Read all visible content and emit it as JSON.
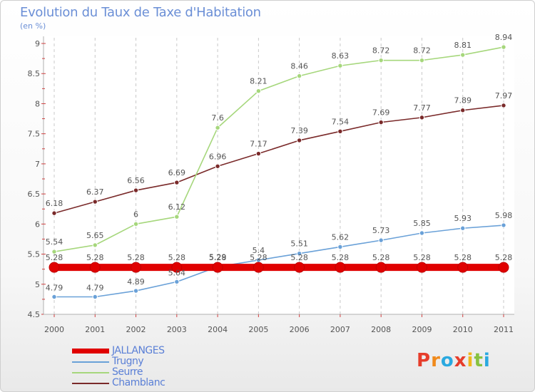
{
  "header": {
    "title": "Evolution du Taux de Taxe d'Habitation",
    "subtitle": "(en %)"
  },
  "brand": {
    "name": "Proxiti",
    "colors": [
      "#e63d2b",
      "#f08a1c",
      "#2aa9e0",
      "#e63d2b",
      "#f0b81c",
      "#88c240",
      "#2aa9e0"
    ]
  },
  "chart_data": {
    "type": "line",
    "x": [
      "2000",
      "2001",
      "2002",
      "2003",
      "2004",
      "2005",
      "2006",
      "2007",
      "2008",
      "2009",
      "2010",
      "2011"
    ],
    "ylim": [
      4.5,
      9
    ],
    "yticks": [
      "4.5",
      "5",
      "5.5",
      "6",
      "6.5",
      "7",
      "7.5",
      "8",
      "8.5",
      "9"
    ],
    "grid": true,
    "legend_position": "bottom-left",
    "series": [
      {
        "name": "JALLANGES",
        "color": "#e00000",
        "values": [
          5.28,
          5.28,
          5.28,
          5.28,
          5.28,
          5.28,
          5.28,
          5.28,
          5.28,
          5.28,
          5.28,
          5.28
        ],
        "labels": [
          "5.28",
          "5.28",
          "5.28",
          "5.28",
          "5.28",
          "5.28",
          "5.28",
          "5.28",
          "5.28",
          "5.28",
          "5.28",
          "5.28"
        ]
      },
      {
        "name": "Trugny",
        "color": "#6aa1d8",
        "values": [
          4.79,
          4.79,
          4.89,
          5.04,
          5.29,
          5.4,
          5.51,
          5.62,
          5.73,
          5.85,
          5.93,
          5.98
        ],
        "labels": [
          "4.79",
          "4.79",
          "4.89",
          "5.04",
          "5.29",
          "5.4",
          "5.51",
          "5.62",
          "5.73",
          "5.85",
          "5.93",
          "5.98"
        ]
      },
      {
        "name": "Seurre",
        "color": "#a6d77c",
        "values": [
          5.54,
          5.65,
          6,
          6.12,
          7.6,
          8.21,
          8.46,
          8.63,
          8.72,
          8.72,
          8.81,
          8.94
        ],
        "labels": [
          "5.54",
          "5.65",
          "6",
          "6.12",
          "7.6",
          "8.21",
          "8.46",
          "8.63",
          "8.72",
          "8.72",
          "8.81",
          "8.94"
        ]
      },
      {
        "name": "Chamblanc",
        "color": "#7a2a2a",
        "values": [
          6.18,
          6.37,
          6.56,
          6.69,
          6.96,
          7.17,
          7.39,
          7.54,
          7.69,
          7.77,
          7.89,
          7.97
        ],
        "labels": [
          "6.18",
          "6.37",
          "6.56",
          "6.69",
          "6.96",
          "7.17",
          "7.39",
          "7.54",
          "7.69",
          "7.77",
          "7.89",
          "7.97"
        ]
      }
    ]
  }
}
